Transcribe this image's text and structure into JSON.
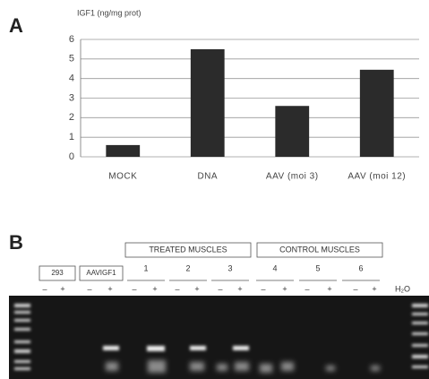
{
  "panel_a": "A",
  "panel_b": "B",
  "chart_data": {
    "type": "bar",
    "y_label": "IGF1 (ng/mg prot)",
    "categories": [
      "MOCK",
      "DNA",
      "AAV (moi 3)",
      "AAV (moi 12)"
    ],
    "values": [
      0.6,
      5.5,
      2.6,
      4.45
    ],
    "color": "#2b2b2b",
    "ylim": [
      0,
      6
    ],
    "yticks": [
      0,
      1,
      2,
      3,
      4,
      5,
      6
    ],
    "grid": true
  },
  "gel": {
    "groups": [
      "TREATED MUSCLES",
      "CONTROL MUSCLES"
    ],
    "lanes": [
      "293",
      "AAVIGF1",
      "1",
      "2",
      "3",
      "4",
      "5",
      "6"
    ],
    "signs": [
      "–",
      "+"
    ],
    "water": "H₂O"
  }
}
